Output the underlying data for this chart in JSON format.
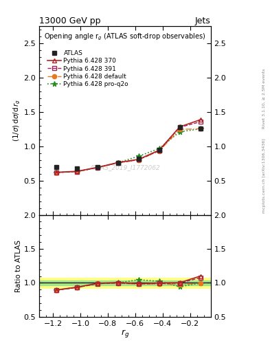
{
  "title_top": "13000 GeV pp",
  "title_right": "Jets",
  "plot_title": "Opening angle r$_g$ (ATLAS soft-drop observables)",
  "ylabel_main": "(1/σ) dσ/d r_g",
  "ylabel_ratio": "Ratio to ATLAS",
  "xlabel": "r$_g$",
  "watermark": "ATLAS_2019_I1772062",
  "right_label_top": "Rivet 3.1.10, ≥ 2.5M events",
  "right_label_bot": "mcplots.cern.ch [arXiv:1306.3436]",
  "x": [
    -1.175,
    -1.025,
    -0.875,
    -0.725,
    -0.575,
    -0.425,
    -0.275,
    -0.125
  ],
  "atlas_y": [
    0.693,
    0.678,
    0.698,
    0.762,
    0.818,
    0.947,
    1.283,
    1.262
  ],
  "atlas_yerr": [
    0.02,
    0.015,
    0.015,
    0.015,
    0.015,
    0.02,
    0.025,
    0.03
  ],
  "py370_y": [
    0.621,
    0.636,
    0.693,
    0.765,
    0.81,
    0.945,
    1.285,
    1.388
  ],
  "py391_y": [
    0.618,
    0.632,
    0.689,
    0.76,
    0.805,
    0.937,
    1.278,
    1.358
  ],
  "pydef_y": [
    0.619,
    0.633,
    0.69,
    0.758,
    0.803,
    0.932,
    1.248,
    1.255
  ],
  "pyproq2o_y": [
    0.618,
    0.632,
    0.689,
    0.762,
    0.856,
    0.968,
    1.213,
    1.255
  ],
  "py370_ratio": [
    0.896,
    0.936,
    0.993,
    1.004,
    0.99,
    0.998,
    1.002,
    1.1
  ],
  "py391_ratio": [
    0.892,
    0.931,
    0.988,
    0.997,
    0.984,
    0.989,
    0.996,
    1.075
  ],
  "pydef_ratio": [
    0.893,
    0.933,
    0.989,
    0.994,
    0.982,
    0.984,
    0.973,
    0.994
  ],
  "pyproq2o_ratio": [
    0.892,
    0.932,
    0.988,
    1.0,
    1.046,
    1.022,
    0.945,
    0.994
  ],
  "color_atlas": "#222222",
  "color_py370": "#b22222",
  "color_py391": "#9b2257",
  "color_pydef": "#e87820",
  "color_pyproq2o": "#228b22",
  "ylim_main": [
    0.0,
    2.75
  ],
  "ylim_ratio": [
    0.5,
    2.0
  ],
  "xlim": [
    -1.3,
    -0.05
  ],
  "yticks_main": [
    0.5,
    1.0,
    1.5,
    2.0,
    2.5
  ],
  "yticks_ratio": [
    0.5,
    1.0,
    1.5,
    2.0
  ],
  "band_yellow_lo": 0.925,
  "band_yellow_hi": 1.075,
  "band_green_lo": 0.965,
  "band_green_hi": 1.035
}
